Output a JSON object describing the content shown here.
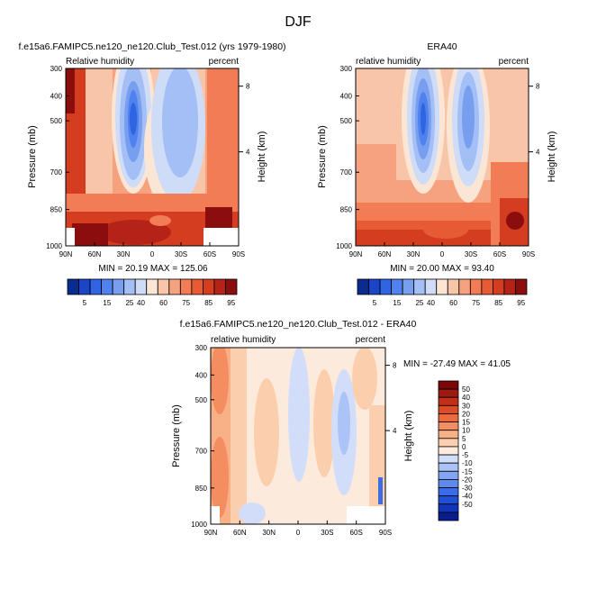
{
  "figure": {
    "season": "DJF"
  },
  "colors": {
    "rh_scale": [
      "#0a2b8f",
      "#1a45c7",
      "#2f64e2",
      "#4f82ee",
      "#789fef",
      "#a3bff5",
      "#cfdcf8",
      "#fbe6d6",
      "#f9c5a8",
      "#f6a27e",
      "#f17c55",
      "#e75b34",
      "#d43d20",
      "#b52318",
      "#8c0d0d"
    ],
    "diff_scale": [
      "#091c8b",
      "#1234b6",
      "#1f4fd6",
      "#3a6ce7",
      "#5d8aee",
      "#84a6f2",
      "#abc3f6",
      "#d2def9",
      "#fcebdd",
      "#fbcfae",
      "#f8b086",
      "#f48d60",
      "#ec6b3c",
      "#de4c25",
      "#c22f18",
      "#9c1a10",
      "#7a0707"
    ]
  },
  "chart_data": [
    {
      "id": "model",
      "type": "contour",
      "title": "f.e15a6.FAMIPC5.ne120_ne120.Club_Test.012 (yrs 1979-1980)",
      "left_label": "Relative humidity",
      "right_label": "percent",
      "xlabel": "",
      "ylabel": "Pressure (mb)",
      "y2label": "Height (km)",
      "x_ticks": [
        "90N",
        "60N",
        "30N",
        "0",
        "30S",
        "60S",
        "90S"
      ],
      "y_ticks": [
        "300",
        "400",
        "500",
        "700",
        "850",
        "1000"
      ],
      "y2_ticks": [
        "8",
        "4"
      ],
      "min_max": "MIN = 20.19  MAX = 125.06",
      "legend_ticks": [
        "5",
        "15",
        "25",
        "40",
        "60",
        "75",
        "85",
        "95"
      ]
    },
    {
      "id": "obs",
      "type": "contour",
      "title": "ERA40",
      "left_label": "relative humidity",
      "right_label": "percent",
      "xlabel": "",
      "ylabel": "Pressure (mb)",
      "y2label": "Height (km)",
      "x_ticks": [
        "90N",
        "60N",
        "30N",
        "0",
        "30S",
        "60S",
        "90S"
      ],
      "y_ticks": [
        "300",
        "400",
        "500",
        "700",
        "850",
        "1000"
      ],
      "y2_ticks": [
        "8",
        "4"
      ],
      "min_max": "MIN = 20.00  MAX = 93.40",
      "legend_ticks": [
        "5",
        "15",
        "25",
        "40",
        "60",
        "75",
        "85",
        "95"
      ]
    },
    {
      "id": "diff",
      "type": "contour",
      "title": "f.e15a6.FAMIPC5.ne120_ne120.Club_Test.012 - ERA40",
      "left_label": "relative humidity",
      "right_label": "percent",
      "xlabel": "",
      "ylabel": "Pressure (mb)",
      "y2label": "Height (km)",
      "x_ticks": [
        "90N",
        "60N",
        "30N",
        "0",
        "30S",
        "60S",
        "90S"
      ],
      "y_ticks": [
        "300",
        "400",
        "500",
        "700",
        "850",
        "1000"
      ],
      "y2_ticks": [
        "8",
        "4"
      ],
      "min_max": "MIN = -27.49  MAX = 41.05",
      "legend_ticks": [
        "50",
        "40",
        "30",
        "20",
        "15",
        "10",
        "5",
        "0",
        "-5",
        "-10",
        "-15",
        "-20",
        "-30",
        "-40",
        "-50"
      ]
    }
  ]
}
